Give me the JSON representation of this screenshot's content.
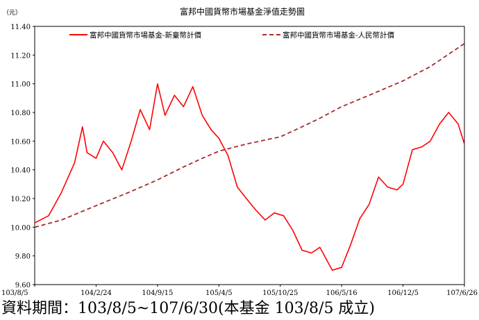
{
  "chart_data": {
    "type": "line",
    "title": "富邦中國貨幣市場基金淨值走勢圖",
    "unit_label": "（元）",
    "ylim": [
      9.6,
      11.4
    ],
    "y_ticks": [
      "11.40",
      "11.20",
      "11.00",
      "10.80",
      "10.60",
      "10.40",
      "10.20",
      "10.00",
      "9.80",
      "9.60"
    ],
    "x_ticks": [
      "103/8/5",
      "104/2/24",
      "104/9/15",
      "105/4/5",
      "105/10/25",
      "106/5/16",
      "106/12/5",
      "107/6/26"
    ],
    "legend_position": "top",
    "grid": false,
    "series": [
      {
        "name": "富邦中國貨幣市場基金-新臺幣計價",
        "color": "#ff0000",
        "style": "solid",
        "values": [
          [
            "103/8/5",
            10.03
          ],
          [
            "103/9/20",
            10.08
          ],
          [
            "103/11/1",
            10.24
          ],
          [
            "103/12/15",
            10.45
          ],
          [
            "104/1/10",
            10.7
          ],
          [
            "104/1/25",
            10.52
          ],
          [
            "104/2/24",
            10.48
          ],
          [
            "104/3/20",
            10.6
          ],
          [
            "104/4/20",
            10.52
          ],
          [
            "104/5/20",
            10.4
          ],
          [
            "104/6/20",
            10.6
          ],
          [
            "104/7/20",
            10.82
          ],
          [
            "104/8/20",
            10.68
          ],
          [
            "104/9/15",
            11.0
          ],
          [
            "104/10/10",
            10.78
          ],
          [
            "104/11/10",
            10.92
          ],
          [
            "104/12/10",
            10.84
          ],
          [
            "105/1/10",
            10.98
          ],
          [
            "105/2/10",
            10.78
          ],
          [
            "105/3/10",
            10.68
          ],
          [
            "105/4/5",
            10.62
          ],
          [
            "105/5/5",
            10.5
          ],
          [
            "105/6/5",
            10.28
          ],
          [
            "105/7/5",
            10.2
          ],
          [
            "105/8/5",
            10.12
          ],
          [
            "105/9/5",
            10.05
          ],
          [
            "105/10/5",
            10.1
          ],
          [
            "105/11/5",
            10.08
          ],
          [
            "105/12/5",
            9.98
          ],
          [
            "106/1/5",
            9.84
          ],
          [
            "106/2/5",
            9.82
          ],
          [
            "106/3/5",
            9.86
          ],
          [
            "106/4/15",
            9.7
          ],
          [
            "106/5/16",
            9.72
          ],
          [
            "106/6/15",
            9.88
          ],
          [
            "106/7/15",
            10.06
          ],
          [
            "106/8/15",
            10.16
          ],
          [
            "106/9/15",
            10.35
          ],
          [
            "106/10/15",
            10.28
          ],
          [
            "106/11/15",
            10.26
          ],
          [
            "106/12/5",
            10.3
          ],
          [
            "107/1/5",
            10.54
          ],
          [
            "107/2/5",
            10.56
          ],
          [
            "107/3/5",
            10.6
          ],
          [
            "107/4/5",
            10.72
          ],
          [
            "107/5/5",
            10.8
          ],
          [
            "107/6/5",
            10.72
          ],
          [
            "107/6/26",
            10.58
          ]
        ]
      },
      {
        "name": "富邦中國貨幣市場基金-人民幣計價",
        "color": "#a52a2a",
        "style": "dashed",
        "values": [
          [
            "103/8/5",
            10.0
          ],
          [
            "103/11/1",
            10.05
          ],
          [
            "104/2/24",
            10.15
          ],
          [
            "104/6/20",
            10.25
          ],
          [
            "104/9/15",
            10.33
          ],
          [
            "104/12/10",
            10.42
          ],
          [
            "105/2/10",
            10.48
          ],
          [
            "105/4/5",
            10.53
          ],
          [
            "105/7/5",
            10.58
          ],
          [
            "105/10/25",
            10.63
          ],
          [
            "106/1/5",
            10.7
          ],
          [
            "106/3/5",
            10.76
          ],
          [
            "106/5/16",
            10.84
          ],
          [
            "106/8/15",
            10.92
          ],
          [
            "106/12/5",
            11.02
          ],
          [
            "107/3/5",
            11.12
          ],
          [
            "107/6/26",
            11.28
          ]
        ]
      }
    ]
  },
  "footnote": "資料期間：103/8/5~107/6/30(本基金 103/8/5 成立)"
}
